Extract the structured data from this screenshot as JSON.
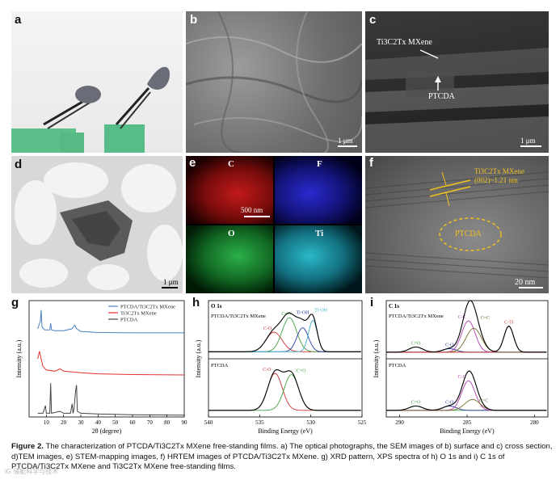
{
  "panels": {
    "a": {
      "label": "a"
    },
    "b": {
      "label": "b",
      "scale": "1 μm"
    },
    "c": {
      "label": "c",
      "scale": "1 μm",
      "ann1": "Ti3C2Tx MXene",
      "ann2": "PTCDA"
    },
    "d": {
      "label": "d",
      "scale": "1 μm"
    },
    "e": {
      "label": "e",
      "scale": "500 nm",
      "maps": [
        "C",
        "F",
        "O",
        "Ti"
      ]
    },
    "f": {
      "label": "f",
      "scale": "20 nm",
      "ann1": "Ti3C2Tx MXene",
      "ann2": "(002)~1.21 nm",
      "ann3": "PTCDA"
    }
  },
  "chart_data": [
    {
      "type": "line",
      "panel": "g",
      "xlabel": "2θ (degree)",
      "ylabel": "Intensity (a.u.)",
      "xlim": [
        0,
        90
      ],
      "xticks": [
        10,
        20,
        30,
        40,
        50,
        60,
        70,
        80,
        90
      ],
      "legend": "top-right",
      "series": [
        {
          "name": "PTCDA/Ti3C2Tx MXene",
          "color": "#4a7fc0",
          "x": [
            5,
            6.5,
            7,
            7.5,
            9,
            12,
            12.5,
            13,
            15,
            20,
            25,
            26.5,
            27.5,
            30,
            40,
            60,
            90
          ],
          "y": [
            2.35,
            2.55,
            2.85,
            2.4,
            2.32,
            2.32,
            2.5,
            2.32,
            2.3,
            2.3,
            2.35,
            2.45,
            2.35,
            2.28,
            2.25,
            2.24,
            2.24
          ]
        },
        {
          "name": "Ti3C2Tx MXene",
          "color": "#e03030",
          "x": [
            5,
            6,
            7,
            8,
            10,
            15,
            18,
            20,
            25,
            30,
            40,
            60,
            90
          ],
          "y": [
            1.55,
            1.75,
            1.55,
            1.35,
            1.25,
            1.22,
            1.28,
            1.22,
            1.2,
            1.18,
            1.15,
            1.13,
            1.12
          ]
        },
        {
          "name": "PTCDA",
          "color": "#444444",
          "x": [
            5,
            8,
            9.5,
            10,
            12,
            12.5,
            13,
            18,
            20,
            24,
            25,
            25.5,
            26,
            27,
            27.5,
            28,
            30,
            40,
            60,
            90
          ],
          "y": [
            0.1,
            0.1,
            0.3,
            0.1,
            0.1,
            0.9,
            0.1,
            0.15,
            0.1,
            0.1,
            0.35,
            0.1,
            0.2,
            0.7,
            0.85,
            0.15,
            0.1,
            0.08,
            0.06,
            0.05
          ]
        }
      ]
    },
    {
      "type": "line",
      "panel": "h",
      "title": "O 1s",
      "xlabel": "Binding Energy (eV)",
      "ylabel": "Intensity (a.u.)",
      "xlim": [
        540,
        525
      ],
      "xticks": [
        540,
        535,
        530,
        525
      ],
      "subplots": [
        {
          "label": "PTCDA/Ti3C2Tx MXene",
          "components": [
            "C-O",
            "C=O",
            "Ti-OH",
            "Ti-OH"
          ]
        },
        {
          "label": "PTCDA",
          "components": [
            "C-O",
            "C=O"
          ]
        }
      ]
    },
    {
      "type": "line",
      "panel": "i",
      "title": "C 1s",
      "xlabel": "Binding Energy (eV)",
      "ylabel": "Intensity (a.u.)",
      "xlim": [
        291,
        279
      ],
      "xticks": [
        290,
        285,
        280
      ],
      "subplots": [
        {
          "label": "PTCDA/Ti3C2Tx MXene",
          "components": [
            "C=O",
            "C-O",
            "C-C",
            "C=C",
            "C-Ti"
          ]
        },
        {
          "label": "PTCDA",
          "components": [
            "C=O",
            "C-O",
            "C-C",
            "C=C"
          ]
        }
      ]
    }
  ],
  "panel_labels": {
    "g": "g",
    "h": "h",
    "i": "i"
  },
  "caption": {
    "prefix": "Figure 2.",
    "text": "The characterization of PTCDA/Ti3C2Tx MXene free-standing films. a) The optical photographs, the SEM images of b) surface and c) cross section, d)TEM images, e) STEM-mapping images, f) HRTEM images of PTCDA/Ti3C2Tx MXene. g) XRD pattern, XPS spectra of h) O 1s and i) C 1s of PTCDA/Ti3C2Tx MXene and Ti3C2Tx MXene free-standing films."
  },
  "watermark": "iG 储能科学与技术"
}
